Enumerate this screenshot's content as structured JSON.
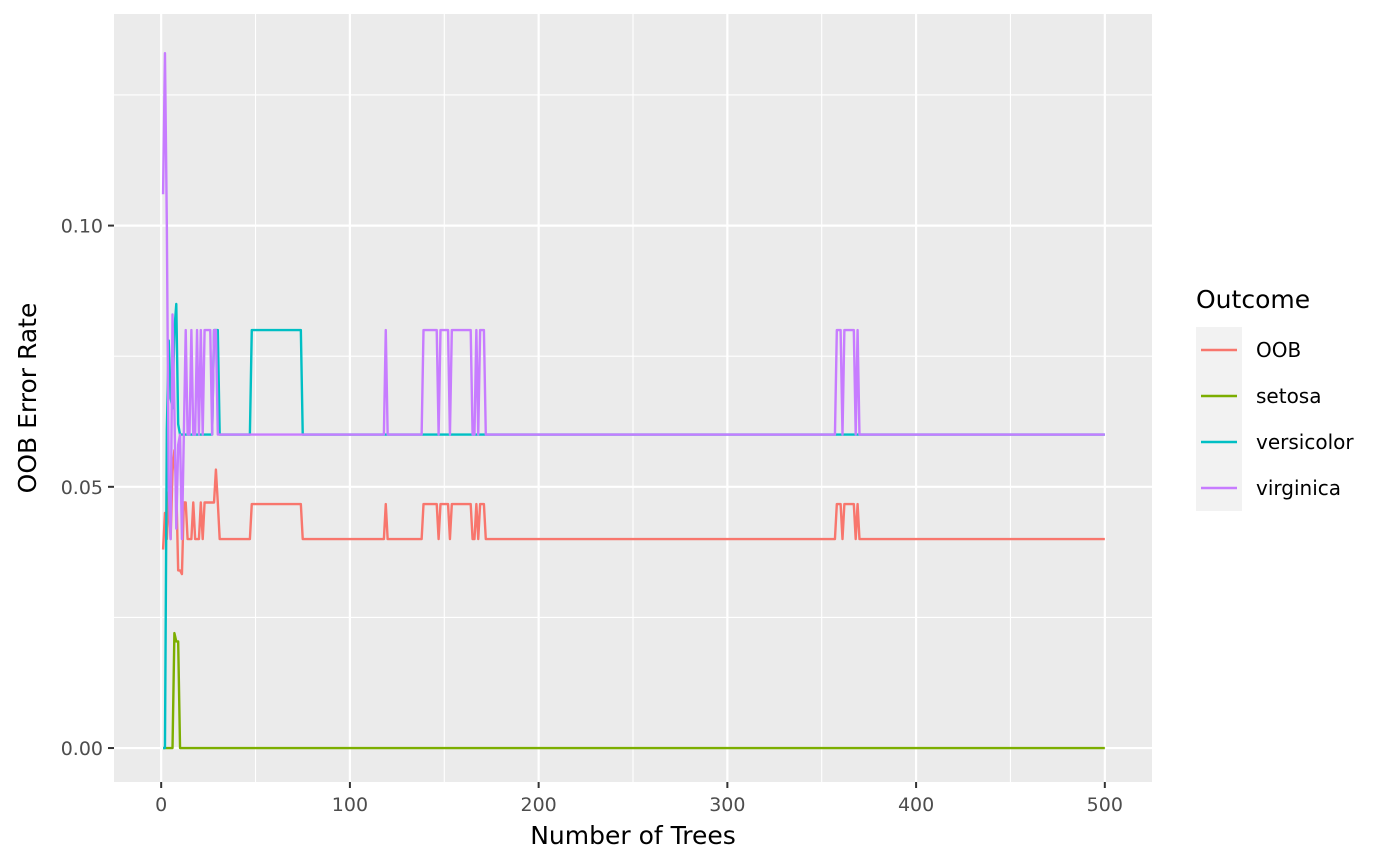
{
  "chart_data": {
    "type": "line",
    "xlabel": "Number of Trees",
    "ylabel": "OOB Error Rate",
    "xlim": [
      -25,
      525
    ],
    "ylim": [
      -0.0065,
      0.1405
    ],
    "x_ticks": [
      0,
      100,
      200,
      300,
      400,
      500
    ],
    "x_tick_labels": [
      "0",
      "100",
      "200",
      "300",
      "400",
      "500"
    ],
    "y_ticks": [
      0.0,
      0.05,
      0.1
    ],
    "y_tick_labels": [
      "0.00",
      "0.05",
      "0.10"
    ],
    "grid": true,
    "legend": {
      "title": "Outcome",
      "position": "right"
    },
    "series": [
      {
        "name": "OOB",
        "color": "#F8766D",
        "points": [
          [
            1,
            0.038
          ],
          [
            2,
            0.045
          ],
          [
            3,
            0.04
          ],
          [
            4,
            0.049
          ],
          [
            5,
            0.04
          ],
          [
            6,
            0.053
          ],
          [
            7,
            0.057
          ],
          [
            8,
            0.05
          ],
          [
            9,
            0.034
          ],
          [
            10,
            0.034
          ],
          [
            11,
            0.0333
          ],
          [
            12,
            0.047
          ],
          [
            13,
            0.047
          ],
          [
            14,
            0.04
          ],
          [
            15,
            0.04
          ],
          [
            16,
            0.04
          ],
          [
            17,
            0.047
          ],
          [
            18,
            0.04
          ],
          [
            19,
            0.04
          ],
          [
            20,
            0.04
          ],
          [
            21,
            0.047
          ],
          [
            22,
            0.04
          ],
          [
            23,
            0.047
          ],
          [
            24,
            0.047
          ],
          [
            25,
            0.047
          ],
          [
            26,
            0.047
          ],
          [
            27,
            0.047
          ],
          [
            28,
            0.047
          ],
          [
            29,
            0.0533
          ],
          [
            30,
            0.047
          ],
          [
            31,
            0.04
          ],
          [
            47,
            0.04
          ],
          [
            48,
            0.0467
          ],
          [
            74,
            0.0467
          ],
          [
            75,
            0.04
          ],
          [
            118,
            0.04
          ],
          [
            119,
            0.0467
          ],
          [
            120,
            0.04
          ],
          [
            138,
            0.04
          ],
          [
            139,
            0.0467
          ],
          [
            146,
            0.0467
          ],
          [
            147,
            0.04
          ],
          [
            148,
            0.0467
          ],
          [
            152,
            0.0467
          ],
          [
            153,
            0.04
          ],
          [
            154,
            0.0467
          ],
          [
            164,
            0.0467
          ],
          [
            165,
            0.04
          ],
          [
            166,
            0.04
          ],
          [
            167,
            0.0467
          ],
          [
            168,
            0.04
          ],
          [
            169,
            0.0467
          ],
          [
            171,
            0.0467
          ],
          [
            172,
            0.04
          ],
          [
            357,
            0.04
          ],
          [
            358,
            0.0467
          ],
          [
            360,
            0.0467
          ],
          [
            361,
            0.04
          ],
          [
            362,
            0.0467
          ],
          [
            367,
            0.0467
          ],
          [
            368,
            0.04
          ],
          [
            369,
            0.0467
          ],
          [
            370,
            0.04
          ],
          [
            500,
            0.04
          ]
        ]
      },
      {
        "name": "setosa",
        "color": "#7CAE00",
        "points": [
          [
            1,
            0.0
          ],
          [
            2,
            0.0
          ],
          [
            3,
            0.0
          ],
          [
            4,
            0.0
          ],
          [
            5,
            0.0
          ],
          [
            6,
            0.0
          ],
          [
            7,
            0.022
          ],
          [
            8,
            0.0204
          ],
          [
            9,
            0.0204
          ],
          [
            10,
            0.0
          ],
          [
            500,
            0.0
          ]
        ]
      },
      {
        "name": "versicolor",
        "color": "#00BFC4",
        "points": [
          [
            1,
            0.0
          ],
          [
            2,
            0.0
          ],
          [
            3,
            0.061
          ],
          [
            4,
            0.078
          ],
          [
            5,
            0.067
          ],
          [
            6,
            0.065
          ],
          [
            7,
            0.08
          ],
          [
            8,
            0.085
          ],
          [
            9,
            0.062
          ],
          [
            10,
            0.06
          ],
          [
            11,
            0.06
          ],
          [
            27,
            0.06
          ],
          [
            28,
            0.08
          ],
          [
            30,
            0.08
          ],
          [
            31,
            0.06
          ],
          [
            47,
            0.06
          ],
          [
            48,
            0.08
          ],
          [
            74,
            0.08
          ],
          [
            75,
            0.06
          ],
          [
            357,
            0.06
          ],
          [
            358,
            0.06
          ],
          [
            500,
            0.06
          ]
        ]
      },
      {
        "name": "virginica",
        "color": "#C77CFF",
        "points": [
          [
            1,
            0.106
          ],
          [
            2,
            0.133
          ],
          [
            3,
            0.1
          ],
          [
            4,
            0.05
          ],
          [
            5,
            0.04
          ],
          [
            6,
            0.083
          ],
          [
            7,
            0.065
          ],
          [
            8,
            0.042
          ],
          [
            9,
            0.058
          ],
          [
            10,
            0.06
          ],
          [
            11,
            0.04
          ],
          [
            12,
            0.06
          ],
          [
            13,
            0.08
          ],
          [
            14,
            0.06
          ],
          [
            15,
            0.06
          ],
          [
            16,
            0.08
          ],
          [
            17,
            0.06
          ],
          [
            18,
            0.06
          ],
          [
            19,
            0.08
          ],
          [
            20,
            0.06
          ],
          [
            21,
            0.08
          ],
          [
            22,
            0.06
          ],
          [
            23,
            0.08
          ],
          [
            24,
            0.08
          ],
          [
            25,
            0.08
          ],
          [
            26,
            0.08
          ],
          [
            27,
            0.06
          ],
          [
            28,
            0.08
          ],
          [
            29,
            0.08
          ],
          [
            30,
            0.06
          ],
          [
            118,
            0.06
          ],
          [
            119,
            0.08
          ],
          [
            120,
            0.06
          ],
          [
            138,
            0.06
          ],
          [
            139,
            0.08
          ],
          [
            146,
            0.08
          ],
          [
            147,
            0.06
          ],
          [
            148,
            0.08
          ],
          [
            152,
            0.08
          ],
          [
            153,
            0.06
          ],
          [
            154,
            0.08
          ],
          [
            164,
            0.08
          ],
          [
            165,
            0.06
          ],
          [
            166,
            0.06
          ],
          [
            167,
            0.08
          ],
          [
            168,
            0.06
          ],
          [
            169,
            0.08
          ],
          [
            171,
            0.08
          ],
          [
            172,
            0.06
          ],
          [
            357,
            0.06
          ],
          [
            358,
            0.08
          ],
          [
            360,
            0.08
          ],
          [
            361,
            0.06
          ],
          [
            362,
            0.08
          ],
          [
            367,
            0.08
          ],
          [
            368,
            0.06
          ],
          [
            369,
            0.08
          ],
          [
            370,
            0.06
          ],
          [
            500,
            0.06
          ]
        ]
      }
    ]
  }
}
